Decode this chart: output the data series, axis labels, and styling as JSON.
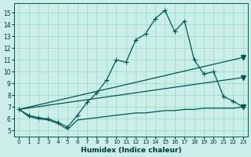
{
  "xlabel": "Humidex (Indice chaleur)",
  "xlim": [
    -0.5,
    23.5
  ],
  "ylim": [
    4.5,
    15.8
  ],
  "xticks": [
    0,
    1,
    2,
    3,
    4,
    5,
    6,
    7,
    8,
    9,
    10,
    11,
    12,
    13,
    14,
    15,
    16,
    17,
    18,
    19,
    20,
    21,
    22,
    23
  ],
  "yticks": [
    5,
    6,
    7,
    8,
    9,
    10,
    11,
    12,
    13,
    14,
    15
  ],
  "bg_color": "#cceee8",
  "grid_color": "#99ddcc",
  "line_color": "#005555",
  "line1_x": [
    0,
    1,
    2,
    3,
    4,
    5,
    6,
    7,
    8,
    9,
    10,
    11,
    12,
    13,
    14,
    15,
    16,
    17,
    18,
    19,
    20,
    21,
    22,
    23
  ],
  "line1_y": [
    6.8,
    6.3,
    6.1,
    6.0,
    5.7,
    5.3,
    6.3,
    7.4,
    8.2,
    9.3,
    11.0,
    10.8,
    12.7,
    13.2,
    14.5,
    15.2,
    13.4,
    14.3,
    11.0,
    9.8,
    10.0,
    7.9,
    7.5,
    7.0
  ],
  "line2_x": [
    0,
    23
  ],
  "line2_y": [
    6.8,
    11.2
  ],
  "line3_x": [
    0,
    23
  ],
  "line3_y": [
    6.8,
    9.5
  ],
  "line4_x": [
    0,
    1,
    2,
    3,
    4,
    5,
    6,
    7,
    8,
    9,
    10,
    11,
    12,
    13,
    14,
    15,
    16,
    17,
    18,
    19,
    20,
    21,
    22,
    23
  ],
  "line4_y": [
    6.8,
    6.2,
    6.0,
    5.9,
    5.6,
    5.1,
    5.9,
    6.0,
    6.1,
    6.2,
    6.3,
    6.4,
    6.5,
    6.5,
    6.6,
    6.7,
    6.7,
    6.8,
    6.8,
    6.9,
    6.9,
    6.9,
    6.9,
    7.0
  ]
}
